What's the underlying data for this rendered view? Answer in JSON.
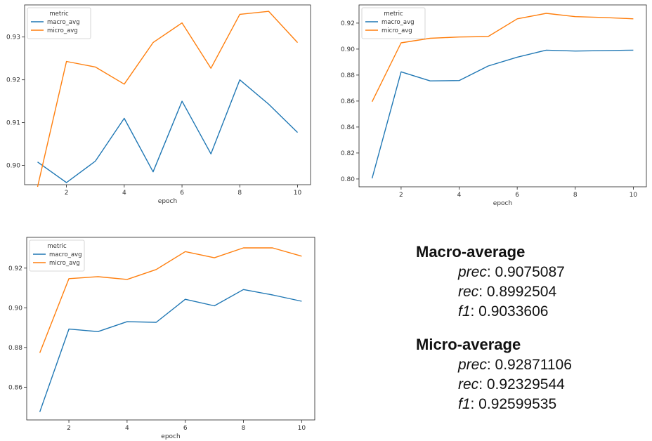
{
  "chart_data": [
    {
      "type": "line",
      "xlabel": "epoch",
      "legend_title": "metric",
      "legend_placement": "top-left",
      "x": [
        1,
        2,
        3,
        4,
        5,
        6,
        7,
        8,
        9,
        10
      ],
      "xticks": [
        2,
        4,
        6,
        8,
        10
      ],
      "yticks": [
        0.9,
        0.91,
        0.92,
        0.93
      ],
      "xlim": [
        0.55,
        10.45
      ],
      "ylim": [
        0.8955,
        0.9375
      ],
      "series": [
        {
          "name": "macro_avg",
          "color": "#1f77b4",
          "values": [
            0.9008,
            0.896,
            0.901,
            0.911,
            0.8985,
            0.915,
            0.9027,
            0.92,
            0.9143,
            0.9077
          ]
        },
        {
          "name": "micro_avg",
          "color": "#ff7f0e",
          "values": [
            0.895,
            0.9243,
            0.923,
            0.919,
            0.9287,
            0.9333,
            0.9227,
            0.9353,
            0.936,
            0.9287
          ]
        }
      ]
    },
    {
      "type": "line",
      "xlabel": "epoch",
      "legend_title": "metric",
      "legend_placement": "top-left",
      "x": [
        1,
        2,
        3,
        4,
        5,
        6,
        7,
        8,
        9,
        10
      ],
      "xticks": [
        2,
        4,
        6,
        8,
        10
      ],
      "yticks": [
        0.8,
        0.82,
        0.84,
        0.86,
        0.88,
        0.9,
        0.92
      ],
      "xlim": [
        0.55,
        10.45
      ],
      "ylim": [
        0.794,
        0.934
      ],
      "series": [
        {
          "name": "macro_avg",
          "color": "#1f77b4",
          "values": [
            0.8005,
            0.8825,
            0.8755,
            0.8758,
            0.887,
            0.8938,
            0.8992,
            0.8985,
            0.8988,
            0.8992
          ]
        },
        {
          "name": "micro_avg",
          "color": "#ff7f0e",
          "values": [
            0.8595,
            0.9048,
            0.9083,
            0.9093,
            0.9097,
            0.9233,
            0.9275,
            0.925,
            0.9243,
            0.9233
          ]
        }
      ]
    },
    {
      "type": "line",
      "xlabel": "epoch",
      "legend_title": "metric",
      "legend_placement": "top-left",
      "x": [
        1,
        2,
        3,
        4,
        5,
        6,
        7,
        8,
        9,
        10
      ],
      "xticks": [
        2,
        4,
        6,
        8,
        10
      ],
      "yticks": [
        0.86,
        0.88,
        0.9,
        0.92
      ],
      "xlim": [
        0.55,
        10.45
      ],
      "ylim": [
        0.8435,
        0.9355
      ],
      "series": [
        {
          "name": "macro_avg",
          "color": "#1f77b4",
          "values": [
            0.8475,
            0.8893,
            0.888,
            0.893,
            0.8927,
            0.9043,
            0.901,
            0.9092,
            0.9065,
            0.9033
          ]
        },
        {
          "name": "micro_avg",
          "color": "#ff7f0e",
          "values": [
            0.8773,
            0.9147,
            0.9157,
            0.9143,
            0.9193,
            0.9283,
            0.9252,
            0.9302,
            0.9302,
            0.926
          ]
        }
      ]
    }
  ],
  "summary": {
    "macro": {
      "title": "Macro-average",
      "prec_label": "prec",
      "prec_value": ": 0.9075087",
      "rec_label": "rec",
      "rec_value": ": 0.8992504",
      "f1_label": "f1",
      "f1_value": ": 0.9033606"
    },
    "micro": {
      "title": "Micro-average",
      "prec_label": "prec",
      "prec_value": ": 0.92871106",
      "rec_label": "rec",
      "rec_value": ": 0.92329544",
      "f1_label": "f1",
      "f1_value": ": 0.92599535"
    }
  }
}
